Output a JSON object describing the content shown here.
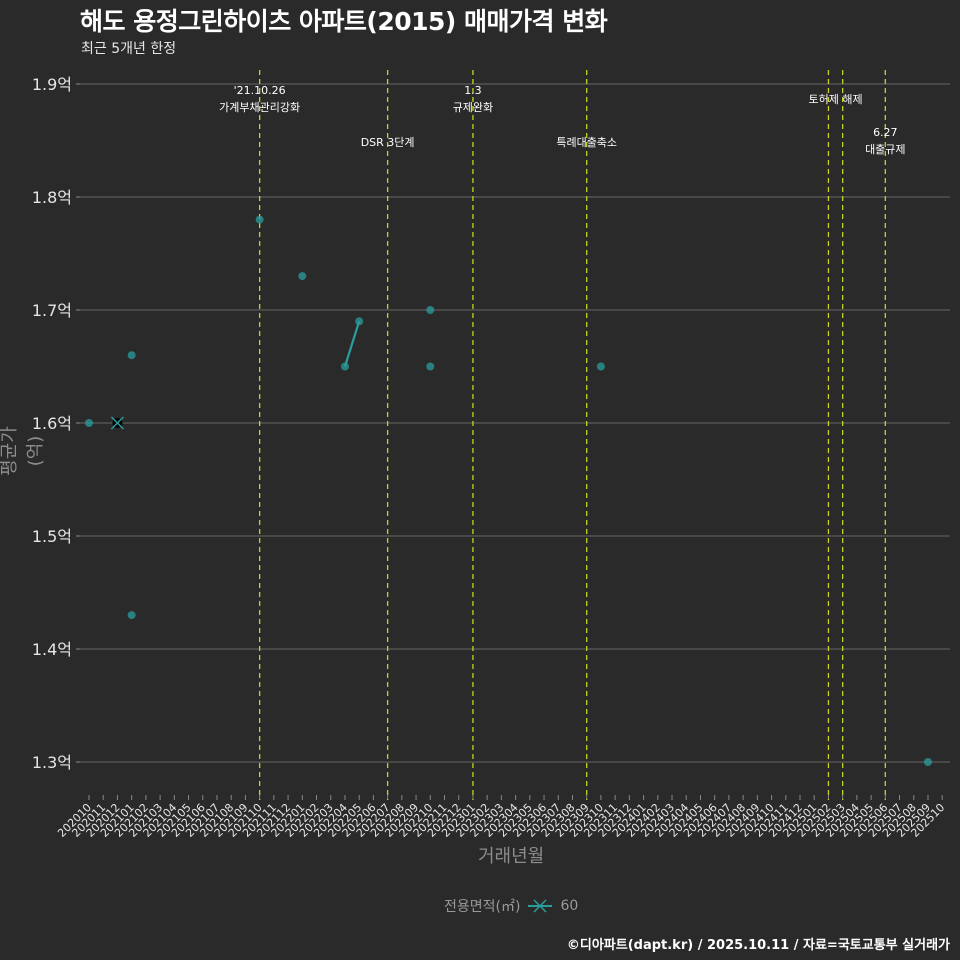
{
  "header": {
    "title": "해도 용정그린하이츠 아파트(2015) 매매가격 변화",
    "subtitle": "최근 5개년 한정"
  },
  "axes": {
    "xlabel": "거래년월",
    "ylabel": "평균가(억)"
  },
  "legend": {
    "title": "전용면적(㎡)",
    "entries": [
      {
        "label": "60",
        "color": "#2a9d9d"
      }
    ]
  },
  "footer": {
    "credit": "©디아파트(dapt.kr) / 2025.10.11 / 자료=국토교통부 실거래가"
  },
  "colors": {
    "background": "#2b2a2b",
    "grid": "#5a5a5a",
    "series": "#2a9d9d",
    "event_line": "#c8d21e",
    "text": "#e6e6e6"
  },
  "chart_data": {
    "type": "line",
    "title": "해도 용정그린하이츠 아파트(2015) 매매가격 변화",
    "subtitle": "최근 5개년 한정",
    "xlabel": "거래년월",
    "ylabel": "평균가(억)",
    "ylim": [
      1.27,
      1.91
    ],
    "yticks": [
      1.3,
      1.4,
      1.5,
      1.6,
      1.7,
      1.8,
      1.9
    ],
    "ytick_labels": [
      "1.3억",
      "1.4억",
      "1.5억",
      "1.6억",
      "1.7억",
      "1.8억",
      "1.9억"
    ],
    "categories": [
      "202010",
      "202011",
      "202012",
      "202101",
      "202102",
      "202103",
      "202104",
      "202105",
      "202106",
      "202107",
      "202108",
      "202109",
      "202110",
      "202111",
      "202112",
      "202201",
      "202202",
      "202203",
      "202204",
      "202205",
      "202206",
      "202207",
      "202208",
      "202209",
      "202210",
      "202211",
      "202212",
      "202301",
      "202302",
      "202303",
      "202304",
      "202305",
      "202306",
      "202307",
      "202308",
      "202309",
      "202310",
      "202311",
      "202312",
      "202401",
      "202402",
      "202403",
      "202404",
      "202405",
      "202406",
      "202407",
      "202408",
      "202409",
      "202410",
      "202411",
      "202412",
      "202501",
      "202502",
      "202503",
      "202504",
      "202505",
      "202506",
      "202507",
      "202508",
      "202509",
      "202510"
    ],
    "grid": true,
    "legend_position": "bottom",
    "series": [
      {
        "name": "60",
        "points": [
          {
            "x": "202010",
            "y": 1.6
          },
          {
            "x": "202012",
            "y": 1.6,
            "marker": "x"
          },
          {
            "x": "202101",
            "y": 1.66
          },
          {
            "x": "202101",
            "y": 1.43
          },
          {
            "x": "202110",
            "y": 1.78
          },
          {
            "x": "202201",
            "y": 1.73
          },
          {
            "x": "202204",
            "y": 1.65
          },
          {
            "x": "202205",
            "y": 1.69
          },
          {
            "x": "202210",
            "y": 1.7
          },
          {
            "x": "202210",
            "y": 1.65
          },
          {
            "x": "202310",
            "y": 1.65
          },
          {
            "x": "202509",
            "y": 1.3
          }
        ],
        "line_segments": [
          [
            {
              "x": "202204",
              "y": 1.65
            },
            {
              "x": "202205",
              "y": 1.69
            }
          ]
        ]
      }
    ],
    "annotations": [
      {
        "x": "202110",
        "label_top": "'21.10.26",
        "label": "가계부채관리강화",
        "y_pos": "high"
      },
      {
        "x": "202207",
        "label_top": "",
        "label": "DSR 3단계",
        "y_pos": "mid"
      },
      {
        "x": "202301",
        "label_top": "1.3",
        "label": "규제완화",
        "y_pos": "high"
      },
      {
        "x": "202309",
        "label_top": "",
        "label": "특례대출축소",
        "y_pos": "mid"
      },
      {
        "x": "202502",
        "label_top": "",
        "label": "토허제 해제",
        "y_pos": "top",
        "span_to": "202503"
      },
      {
        "x": "202503",
        "label_top": "",
        "label": "",
        "y_pos": "none"
      },
      {
        "x": "202506",
        "label_top": "6.27",
        "label": "대출규제",
        "y_pos": "low"
      }
    ]
  }
}
